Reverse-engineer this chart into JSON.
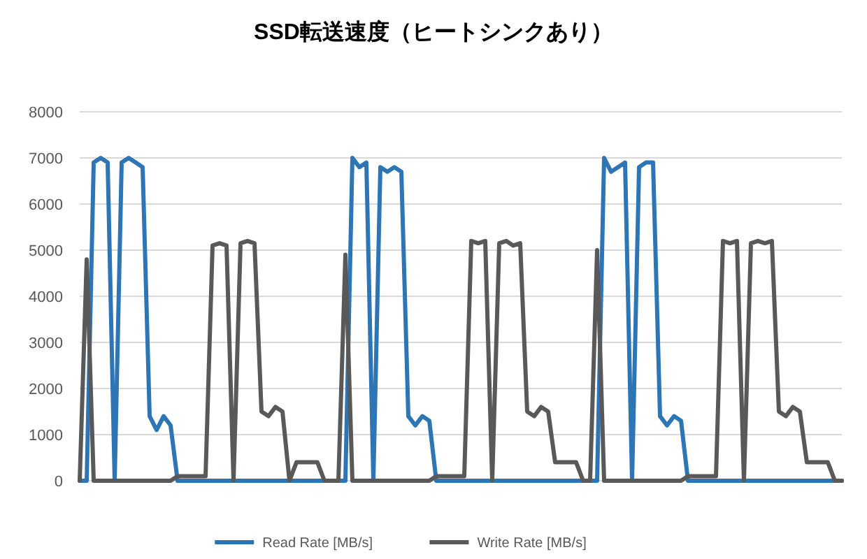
{
  "chart_data": {
    "type": "line",
    "title": "SSD転送速度（ヒートシンクあり）",
    "categories": [
      null,
      null,
      null,
      null,
      null,
      null,
      null,
      null,
      null,
      null,
      null,
      null,
      null,
      null,
      null,
      null,
      null,
      null,
      null,
      null,
      null,
      null,
      null,
      null,
      null,
      null,
      null,
      null,
      null,
      null,
      null,
      null,
      null,
      null,
      null,
      null,
      null,
      null,
      null,
      null,
      null,
      null,
      null,
      null,
      null,
      null,
      null,
      null,
      null,
      null,
      null,
      null,
      null,
      null,
      null,
      null,
      null,
      null,
      null,
      null,
      null,
      null,
      null,
      null,
      null,
      null,
      null,
      null,
      null,
      null,
      null,
      null,
      null,
      null,
      null,
      null,
      null,
      null,
      null,
      null,
      null,
      null,
      null,
      null,
      null,
      null,
      null,
      null,
      null,
      null,
      null,
      null,
      null,
      null,
      null,
      null,
      null,
      null,
      null,
      null,
      null,
      null,
      null,
      null,
      null,
      null,
      null,
      null,
      null,
      null
    ],
    "series": [
      {
        "name": "Read Rate [MB/s]",
        "color": "#2e75b6",
        "values": [
          0,
          0,
          6900,
          7000,
          6900,
          0,
          6900,
          7000,
          6900,
          6800,
          1400,
          1100,
          1400,
          1200,
          0,
          0,
          0,
          0,
          0,
          0,
          0,
          0,
          0,
          0,
          0,
          0,
          0,
          0,
          0,
          0,
          0,
          0,
          0,
          0,
          0,
          0,
          0,
          0,
          0,
          7000,
          6800,
          6900,
          0,
          6800,
          6700,
          6800,
          6700,
          1400,
          1200,
          1400,
          1300,
          0,
          0,
          0,
          0,
          0,
          0,
          0,
          0,
          0,
          0,
          0,
          0,
          0,
          0,
          0,
          0,
          0,
          0,
          0,
          0,
          0,
          0,
          0,
          0,
          7000,
          6700,
          6800,
          6900,
          0,
          6800,
          6900,
          6900,
          1400,
          1200,
          1400,
          1300,
          0,
          0,
          0,
          0,
          0,
          0,
          0,
          0,
          0,
          0,
          0,
          0,
          0,
          0,
          0,
          0,
          0,
          0,
          0,
          0,
          0,
          0,
          0
        ]
      },
      {
        "name": "Write Rate [MB/s]",
        "color": "#595959",
        "values": [
          0,
          4800,
          0,
          0,
          0,
          0,
          0,
          0,
          0,
          0,
          0,
          0,
          0,
          0,
          100,
          100,
          100,
          100,
          100,
          5100,
          5150,
          5100,
          0,
          5150,
          5200,
          5150,
          1500,
          1400,
          1600,
          1500,
          0,
          400,
          400,
          400,
          400,
          0,
          0,
          0,
          4900,
          0,
          0,
          0,
          0,
          0,
          0,
          0,
          0,
          0,
          0,
          0,
          0,
          100,
          100,
          100,
          100,
          100,
          5200,
          5150,
          5200,
          0,
          5150,
          5200,
          5100,
          5150,
          1500,
          1400,
          1600,
          1500,
          400,
          400,
          400,
          400,
          0,
          0,
          5000,
          0,
          0,
          0,
          0,
          0,
          0,
          0,
          0,
          0,
          0,
          0,
          0,
          100,
          100,
          100,
          100,
          100,
          5200,
          5150,
          5200,
          0,
          5150,
          5200,
          5150,
          5200,
          1500,
          1400,
          1600,
          1500,
          400,
          400,
          400,
          400,
          0,
          0
        ]
      }
    ],
    "ylim": [
      0,
      8000
    ],
    "yticks": [
      0,
      1000,
      2000,
      3000,
      4000,
      5000,
      6000,
      7000,
      8000
    ],
    "grid": "y",
    "legend": "bottom"
  }
}
